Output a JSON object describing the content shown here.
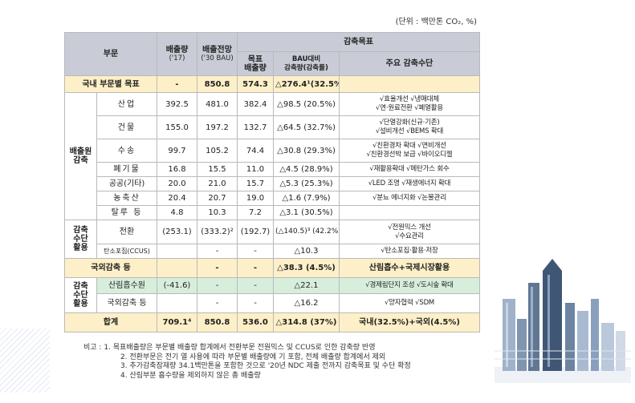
{
  "unit": "(단위 : 백만톤 CO₂, %)",
  "header": {
    "sector": "부문",
    "emission": "배출량",
    "emission_year": "('17)",
    "forecast": "배출전망",
    "forecast_year": "('30 BAU)",
    "reduction_goal": "감축목표",
    "target_emission_1": "목표",
    "target_emission_2": "배출량",
    "bau_reduction_1": "BAU대비",
    "bau_reduction_2": "감축량(감축률)",
    "means": "주요 감축수단"
  },
  "domestic": {
    "label": "국내 부문별 목표",
    "emission": "-",
    "forecast": "850.8",
    "target": "574.3",
    "reduction": "△276.4¹(32.5%)",
    "means": ""
  },
  "emission_group": {
    "line1": "배출원",
    "line2": "감축"
  },
  "emission_rows": [
    {
      "name": "산업",
      "emission": "392.5",
      "forecast": "481.0",
      "target": "382.4",
      "reduction": "△98.5 (20.5%)",
      "means1": "√효율개선 √냉매대체",
      "means2": "√연·원료전환 √폐열활용"
    },
    {
      "name": "건물",
      "emission": "155.0",
      "forecast": "197.2",
      "target": "132.7",
      "reduction": "△64.5 (32.7%)",
      "means1": "√단열강화(신규·기존)",
      "means2": "√설비개선 √BEMS 확대"
    },
    {
      "name": "수송",
      "emission": "99.7",
      "forecast": "105.2",
      "target": "74.4",
      "reduction": "△30.8 (29.3%)",
      "means1": "√친환경차 확대 √연비개선",
      "means2": "√친환경선박 보급 √바이오디젤"
    },
    {
      "name": "폐기물",
      "emission": "16.8",
      "forecast": "15.5",
      "target": "11.0",
      "reduction": "△4.5 (28.9%)",
      "means1": "√재활용확대 √메탄가스 회수",
      "means2": ""
    },
    {
      "name": "공공(기타)",
      "emission": "20.0",
      "forecast": "21.0",
      "target": "15.7",
      "reduction": "△5.3 (25.3%)",
      "means1": "√LED 조명 √재생에너지 확대",
      "means2": ""
    },
    {
      "name": "농축산",
      "emission": "20.4",
      "forecast": "20.7",
      "target": "19.0",
      "reduction": "△1.6 (7.9%)",
      "means1": "√분뇨 에너지화 √논물관리",
      "means2": ""
    },
    {
      "name": "탈루 등",
      "emission": "4.8",
      "forecast": "10.3",
      "target": "7.2",
      "reduction": "△3.1 (30.5%)",
      "means1": "",
      "means2": ""
    }
  ],
  "means_group": {
    "line1": "감축",
    "line2": "수단",
    "line3": "활용"
  },
  "means_rows": [
    {
      "name": "전환",
      "emission": "(253.1)",
      "forecast": "(333.2)²",
      "target": "(192.7)",
      "reduction": "(△140.5)³ (42.2%)",
      "means1": "√전원믹스 개선",
      "means2": "√수요관리"
    },
    {
      "name": "탄소포집(CCUS)",
      "emission": "",
      "forecast": "-",
      "target": "-",
      "reduction": "△10.3",
      "means1": "√탄소포집·활용·저장",
      "means2": ""
    }
  ],
  "abroad": {
    "label": "국외감축 등",
    "emission": "",
    "forecast": "-",
    "target": "-",
    "reduction": "△38.3 (4.5%)",
    "means": "산림흡수+국제시장활용"
  },
  "abroad_group": {
    "line1": "감축",
    "line2": "수단",
    "line3": "활용"
  },
  "abroad_rows": [
    {
      "name": "산림흡수원",
      "emission": "(-41.6)",
      "forecast": "-",
      "target": "-",
      "reduction": "△22.1",
      "means": "√경제림단지 조성 √도시숲 확대"
    },
    {
      "name": "국외감축 등",
      "emission": "",
      "forecast": "-",
      "target": "-",
      "reduction": "△16.2",
      "means": "√양자협력 √SDM"
    }
  ],
  "total": {
    "label": "합계",
    "emission": "709.1⁴",
    "forecast": "850.8",
    "target": "536.0",
    "reduction": "△314.8 (37%)",
    "means": "국내(32.5%)+국외(4.5%)"
  },
  "notes": {
    "prefix": "비고 : ",
    "items": [
      "1. 목표배출량은 부문별 배출량 합계에서 전환부문 전원믹스 및 CCUS로 인한 감축량 반영",
      "2. 전환부문은 전기 열 사용에 따라 부문별 배출량에 기 포함, 전체 배출량 합계에서 제외",
      "3. 추가감축잠재량 34.1백만톤을 포함한 것으로 '20년 NDC 제출 전까지 감축목표 및 수단 확정",
      "4. 산림부분 흡수량을 제외하지 않은 총 배출량"
    ]
  }
}
